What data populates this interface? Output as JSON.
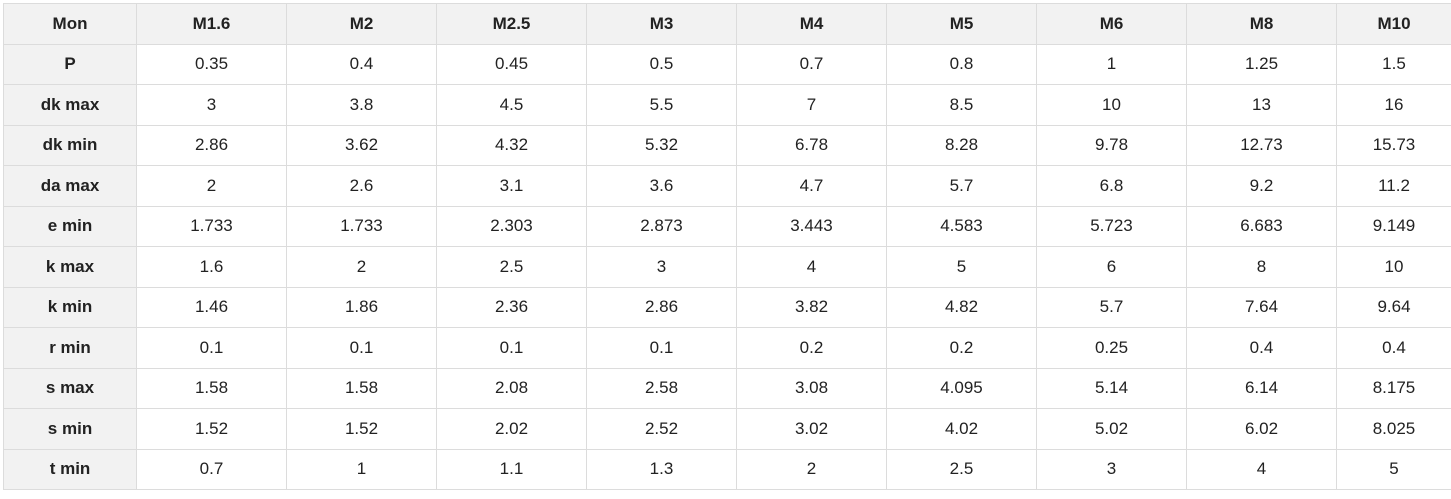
{
  "table": {
    "header": [
      "Mon",
      "M1.6",
      "M2",
      "M2.5",
      "M3",
      "M4",
      "M5",
      "M6",
      "M8",
      "M10"
    ],
    "rows": [
      [
        "P",
        "0.35",
        "0.4",
        "0.45",
        "0.5",
        "0.7",
        "0.8",
        "1",
        "1.25",
        "1.5"
      ],
      [
        "dk max",
        "3",
        "3.8",
        "4.5",
        "5.5",
        "7",
        "8.5",
        "10",
        "13",
        "16"
      ],
      [
        "dk min",
        "2.86",
        "3.62",
        "4.32",
        "5.32",
        "6.78",
        "8.28",
        "9.78",
        "12.73",
        "15.73"
      ],
      [
        "da max",
        "2",
        "2.6",
        "3.1",
        "3.6",
        "4.7",
        "5.7",
        "6.8",
        "9.2",
        "11.2"
      ],
      [
        "e min",
        "1.733",
        "1.733",
        "2.303",
        "2.873",
        "3.443",
        "4.583",
        "5.723",
        "6.683",
        "9.149"
      ],
      [
        "k max",
        "1.6",
        "2",
        "2.5",
        "3",
        "4",
        "5",
        "6",
        "8",
        "10"
      ],
      [
        "k min",
        "1.46",
        "1.86",
        "2.36",
        "2.86",
        "3.82",
        "4.82",
        "5.7",
        "7.64",
        "9.64"
      ],
      [
        "r min",
        "0.1",
        "0.1",
        "0.1",
        "0.1",
        "0.2",
        "0.2",
        "0.25",
        "0.4",
        "0.4"
      ],
      [
        "s max",
        "1.58",
        "1.58",
        "2.08",
        "2.58",
        "3.08",
        "4.095",
        "5.14",
        "6.14",
        "8.175"
      ],
      [
        "s min",
        "1.52",
        "1.52",
        "2.02",
        "2.52",
        "3.02",
        "4.02",
        "5.02",
        "6.02",
        "8.025"
      ],
      [
        "t min",
        "0.7",
        "1",
        "1.1",
        "1.3",
        "2",
        "2.5",
        "3",
        "4",
        "5"
      ]
    ]
  }
}
